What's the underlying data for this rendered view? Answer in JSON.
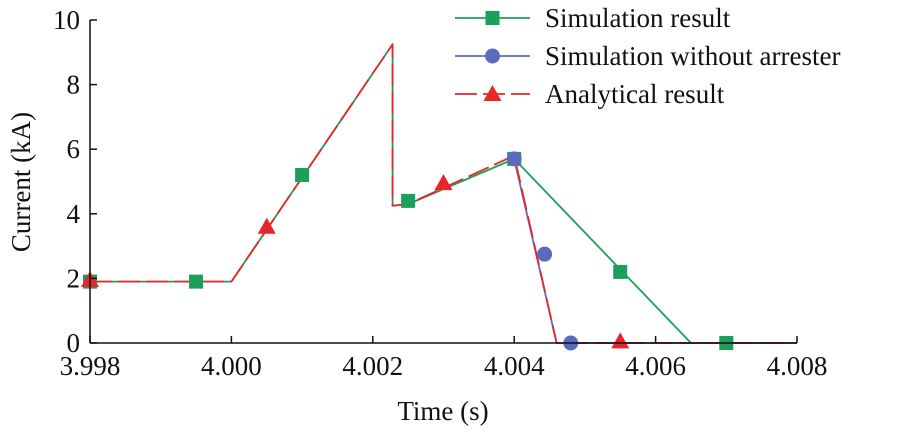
{
  "chart_data": {
    "type": "line",
    "title": "",
    "xlabel": "Time (s)",
    "ylabel": "Current (kA)",
    "xlim": [
      3.998,
      4.008
    ],
    "ylim": [
      0,
      10
    ],
    "xticks": [
      "3.998",
      "4.000",
      "4.002",
      "4.004",
      "4.006",
      "4.008"
    ],
    "yticks": [
      "0",
      "2",
      "4",
      "6",
      "8",
      "10"
    ],
    "grid": false,
    "legend_position": "top-right",
    "series": [
      {
        "name": "Simulation result",
        "color": "#1aa05a",
        "line_style": "solid",
        "marker": "square",
        "points": [
          [
            3.998,
            1.9
          ],
          [
            4.0,
            1.9
          ],
          [
            4.00228,
            9.25
          ],
          [
            4.00228,
            4.25
          ],
          [
            4.0025,
            4.3
          ],
          [
            4.004,
            5.7
          ],
          [
            4.0065,
            0.0
          ],
          [
            4.008,
            0.0
          ]
        ],
        "marker_points": [
          [
            3.998,
            1.9
          ],
          [
            3.9995,
            1.9
          ],
          [
            4.001,
            5.2
          ],
          [
            4.0025,
            4.4
          ],
          [
            4.004,
            5.7
          ],
          [
            4.0055,
            2.2
          ],
          [
            4.007,
            0.0
          ]
        ]
      },
      {
        "name": "Simulation without arrester",
        "color": "#5a6bbf",
        "line_style": "solid",
        "marker": "circle",
        "points": [
          [
            4.004,
            5.7
          ],
          [
            4.0046,
            0.0
          ],
          [
            4.008,
            0.0
          ]
        ],
        "marker_points": [
          [
            4.004,
            5.7
          ],
          [
            4.00443,
            2.75
          ],
          [
            4.0048,
            0.0
          ]
        ]
      },
      {
        "name": "Analytical result",
        "color": "#e8262a",
        "line_style": "dashed",
        "marker": "triangle",
        "points": [
          [
            3.998,
            1.9
          ],
          [
            4.0,
            1.9
          ],
          [
            4.00228,
            9.25
          ],
          [
            4.00228,
            4.25
          ],
          [
            4.0025,
            4.3
          ],
          [
            4.004,
            5.8
          ],
          [
            4.0046,
            0.0
          ],
          [
            4.008,
            0.0
          ]
        ],
        "marker_points": [
          [
            3.998,
            1.95
          ],
          [
            4.0005,
            3.6
          ],
          [
            4.003,
            4.95
          ],
          [
            4.0055,
            0.05
          ]
        ]
      }
    ]
  }
}
